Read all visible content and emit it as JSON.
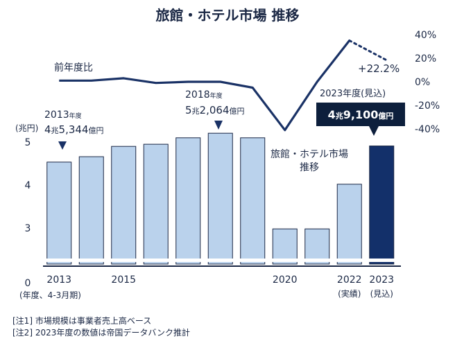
{
  "chart_data": {
    "type": "bar",
    "title": "旅館・ホテル市場 推移",
    "categories": [
      "2013",
      "2014",
      "2015",
      "2016",
      "2017",
      "2018",
      "2019",
      "2020",
      "2021",
      "2022",
      "2023"
    ],
    "x_tick_labels": [
      {
        "index": 0,
        "label": "2013"
      },
      {
        "index": 2,
        "label": "2015"
      },
      {
        "index": 7,
        "label": "2020"
      },
      {
        "index": 9,
        "label": "2022",
        "sublabel": "(実績)"
      },
      {
        "index": 10,
        "label": "2023",
        "sublabel": "(見込)"
      }
    ],
    "x_axis_note": "(年度、4-3月期)",
    "bar_series": {
      "name": "旅館・ホテル市場推移",
      "label": [
        "旅館・ホテル市場",
        "推移"
      ],
      "unit": "(兆円)",
      "values": [
        4.5344,
        4.66,
        4.9,
        4.95,
        5.1,
        5.2064,
        5.1,
        2.98,
        2.98,
        4.02,
        4.91
      ],
      "ylim": [
        0,
        5.4
      ],
      "yticks": [
        0,
        3,
        4,
        5
      ],
      "axis_break": true,
      "colors": {
        "default": "#bad2ec",
        "highlight": "#13306a",
        "edge": "#1a2744"
      },
      "highlight_index": 10
    },
    "line_series": {
      "name": "前年度比",
      "values_pct": [
        1,
        1,
        3,
        -1,
        0,
        0,
        -5,
        -41,
        0,
        35,
        22.2
      ],
      "projection_from_index": 9,
      "ylim": [
        -40,
        40
      ],
      "yticks": [
        "40%",
        "20%",
        "0%",
        "-20%",
        "-40%"
      ],
      "end_label": "+22.2%",
      "color": "#1a3266"
    },
    "annotations": [
      {
        "index": 0,
        "year_text": "2013",
        "year_suffix": "年度",
        "value_parts": [
          "4",
          "兆",
          "5,344",
          "億円"
        ]
      },
      {
        "index": 5,
        "year_text": "2018",
        "year_suffix": "年度",
        "value_parts": [
          "5",
          "兆",
          "2,064",
          "億円"
        ]
      },
      {
        "index": 10,
        "year_text": "2023年度(見込)",
        "value_parts": [
          "4",
          "兆",
          "9,100",
          "億円"
        ],
        "boxed": true
      }
    ]
  },
  "notes": [
    "[注1]  市場規模は事業者売上高ベース",
    "[注2]  2023年度の数値は帝国データバンク推計"
  ]
}
